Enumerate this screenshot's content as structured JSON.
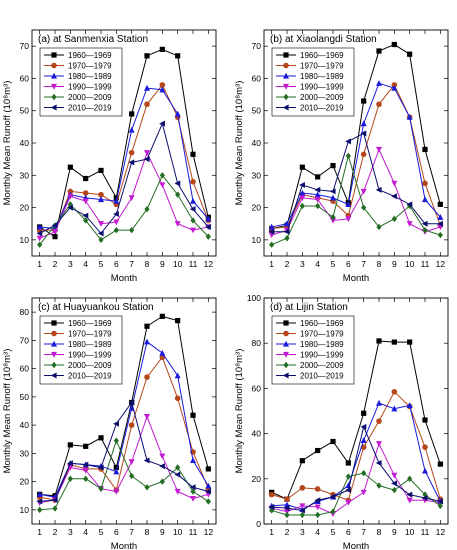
{
  "figure": {
    "xlabel": "Month",
    "ylabel": "Monthly Mean Runoff (10⁸m³)"
  },
  "chart_data": [
    {
      "type": "line",
      "title": "(a) at Sanmenxia Station",
      "xlabel": "Month",
      "ylabel": "Monthly Mean Runoff (10⁸m³)",
      "x": [
        1,
        2,
        3,
        4,
        5,
        6,
        7,
        8,
        9,
        10,
        11,
        12
      ],
      "xlim": [
        0.5,
        12.5
      ],
      "ylim": [
        5,
        75
      ],
      "yticks": [
        10,
        20,
        30,
        40,
        50,
        60,
        70
      ],
      "legend_position": "top-left",
      "series": [
        {
          "name": "1960—1969",
          "color": "#000000",
          "marker": "square",
          "values": [
            14,
            11,
            32.5,
            29,
            31.5,
            23,
            49,
            67,
            69,
            67,
            36.5,
            17
          ]
        },
        {
          "name": "1970—1979",
          "color": "#b5471b",
          "marker": "circle",
          "values": [
            13,
            13,
            25,
            24.5,
            24,
            21,
            37,
            52,
            58,
            48,
            28,
            16
          ]
        },
        {
          "name": "1980—1989",
          "color": "#1a1adb",
          "marker": "triangle-up",
          "values": [
            14,
            13.5,
            24,
            23,
            22.5,
            22,
            44,
            57,
            56.5,
            49,
            22,
            16.5
          ]
        },
        {
          "name": "1990—1999",
          "color": "#c21bd1",
          "marker": "triangle-down",
          "values": [
            10.5,
            12.5,
            23.5,
            22,
            15,
            15.5,
            23,
            37,
            27,
            15,
            13,
            14
          ]
        },
        {
          "name": "2000—2009",
          "color": "#246e24",
          "marker": "diamond",
          "values": [
            8.5,
            14.5,
            21,
            16,
            10,
            13,
            13,
            19.5,
            30,
            24,
            16,
            11
          ]
        },
        {
          "name": "2010—2019",
          "color": "#0c0f6e",
          "marker": "triangle-left",
          "values": [
            12,
            14.5,
            20,
            17.5,
            12,
            18,
            34,
            35,
            46,
            27.5,
            19.5,
            14
          ]
        }
      ]
    },
    {
      "type": "line",
      "title": "(b) at Xiaolangdi Station",
      "xlabel": "Month",
      "ylabel": "Monthly Mean Runoff (10⁸m³)",
      "x": [
        1,
        2,
        3,
        4,
        5,
        6,
        7,
        8,
        9,
        10,
        11,
        12
      ],
      "xlim": [
        0.5,
        12.5
      ],
      "ylim": [
        5,
        75
      ],
      "yticks": [
        10,
        20,
        30,
        40,
        50,
        60,
        70
      ],
      "legend_position": "top-left",
      "series": [
        {
          "name": "1960—1969",
          "color": "#000000",
          "marker": "square",
          "values": [
            13.5,
            14.5,
            32.5,
            29.5,
            33,
            21.5,
            53,
            68.5,
            70.5,
            67.5,
            38,
            21
          ]
        },
        {
          "name": "1970—1979",
          "color": "#b5471b",
          "marker": "circle",
          "values": [
            13.5,
            14,
            24,
            23,
            22,
            17.5,
            36.5,
            52,
            58,
            48,
            27.5,
            14.5
          ]
        },
        {
          "name": "1980—1989",
          "color": "#1a1adb",
          "marker": "triangle-up",
          "values": [
            14,
            15,
            24.5,
            24,
            23,
            21,
            46,
            58.5,
            57,
            48,
            22.5,
            17
          ]
        },
        {
          "name": "1990—1999",
          "color": "#c21bd1",
          "marker": "triangle-down",
          "values": [
            11.5,
            13,
            23,
            22.5,
            16,
            16.5,
            25,
            38,
            27.5,
            15,
            12.5,
            14
          ]
        },
        {
          "name": "2000—2009",
          "color": "#246e24",
          "marker": "diamond",
          "values": [
            8.5,
            10.5,
            20.5,
            20.5,
            17,
            36,
            20,
            14,
            16.5,
            20.5,
            13,
            11.5
          ]
        },
        {
          "name": "2010—2019",
          "color": "#0c0f6e",
          "marker": "triangle-left",
          "values": [
            12.5,
            12.5,
            27,
            25.5,
            25,
            40.5,
            43,
            25.5,
            23.5,
            21,
            15,
            15
          ]
        }
      ]
    },
    {
      "type": "line",
      "title": "(c) at Huayuankou Station",
      "xlabel": "Month",
      "ylabel": "Monthly Mean Runoff (10⁸m³)",
      "x": [
        1,
        2,
        3,
        4,
        5,
        6,
        7,
        8,
        9,
        10,
        11,
        12
      ],
      "xlim": [
        0.5,
        12.5
      ],
      "ylim": [
        5,
        85
      ],
      "yticks": [
        10,
        20,
        30,
        40,
        50,
        60,
        70,
        80
      ],
      "legend_position": "top-left",
      "series": [
        {
          "name": "1960—1969",
          "color": "#000000",
          "marker": "square",
          "values": [
            15.5,
            15,
            33,
            32.5,
            35.5,
            25,
            48,
            75,
            78.5,
            77,
            43.5,
            24.5
          ]
        },
        {
          "name": "1970—1979",
          "color": "#b5471b",
          "marker": "circle",
          "values": [
            14.5,
            13.5,
            26,
            24.5,
            24.5,
            17,
            40,
            57,
            64,
            49.5,
            30.5,
            17.5
          ]
        },
        {
          "name": "1980—1989",
          "color": "#1a1adb",
          "marker": "triangle-up",
          "values": [
            15.5,
            14.5,
            26.5,
            26,
            25.5,
            23.5,
            46,
            69.5,
            65.5,
            57.5,
            27.5,
            18.5
          ]
        },
        {
          "name": "1990—1999",
          "color": "#c21bd1",
          "marker": "triangle-down",
          "values": [
            12.5,
            13.5,
            25,
            24,
            17.5,
            16.5,
            27,
            43,
            29,
            16.5,
            14,
            15.5
          ]
        },
        {
          "name": "2000—2009",
          "color": "#246e24",
          "marker": "diamond",
          "values": [
            10,
            10.5,
            21,
            21,
            17.5,
            34.5,
            22,
            18,
            20,
            25,
            16.5,
            13
          ]
        },
        {
          "name": "2010—2019",
          "color": "#0c0f6e",
          "marker": "triangle-left",
          "values": [
            13,
            13.5,
            26.5,
            26,
            25,
            40.5,
            48,
            27.5,
            25.5,
            22.5,
            18,
            16.5
          ]
        }
      ]
    },
    {
      "type": "line",
      "title": "(d) at Lijin Station",
      "xlabel": "Month",
      "ylabel": "Monthly Mean Runoff (10⁸m³)",
      "x": [
        1,
        2,
        3,
        4,
        5,
        6,
        7,
        8,
        9,
        10,
        11,
        12
      ],
      "xlim": [
        0.5,
        12.5
      ],
      "ylim": [
        0,
        100
      ],
      "yticks": [
        0,
        20,
        40,
        60,
        80,
        100
      ],
      "legend_position": "top-left",
      "series": [
        {
          "name": "1960—1969",
          "color": "#000000",
          "marker": "square",
          "values": [
            14,
            11,
            28,
            32.5,
            36.5,
            27,
            49,
            81,
            80.5,
            80.5,
            46,
            26.5
          ]
        },
        {
          "name": "1970—1979",
          "color": "#b5471b",
          "marker": "circle",
          "values": [
            13,
            11,
            16,
            15.5,
            13,
            10.5,
            34,
            45.5,
            58.5,
            52,
            34,
            11
          ]
        },
        {
          "name": "1980—1989",
          "color": "#1a1adb",
          "marker": "triangle-up",
          "values": [
            8,
            8.5,
            6.5,
            10,
            12,
            17,
            37,
            53.5,
            51,
            52.5,
            23.5,
            10
          ]
        },
        {
          "name": "1990—1999",
          "color": "#c21bd1",
          "marker": "triangle-down",
          "values": [
            7,
            5.5,
            8,
            7.5,
            4.5,
            9.5,
            14,
            35.5,
            21.5,
            10.5,
            10.5,
            9.5
          ]
        },
        {
          "name": "2000—2009",
          "color": "#246e24",
          "marker": "diamond",
          "values": [
            6,
            4,
            4,
            4,
            5.5,
            21,
            22.5,
            17,
            15,
            20,
            13,
            8
          ]
        },
        {
          "name": "2010—2019",
          "color": "#0c0f6e",
          "marker": "triangle-left",
          "values": [
            7.5,
            7,
            6,
            10.5,
            12,
            15,
            43,
            27,
            18,
            13,
            11.5,
            10
          ]
        }
      ]
    }
  ]
}
